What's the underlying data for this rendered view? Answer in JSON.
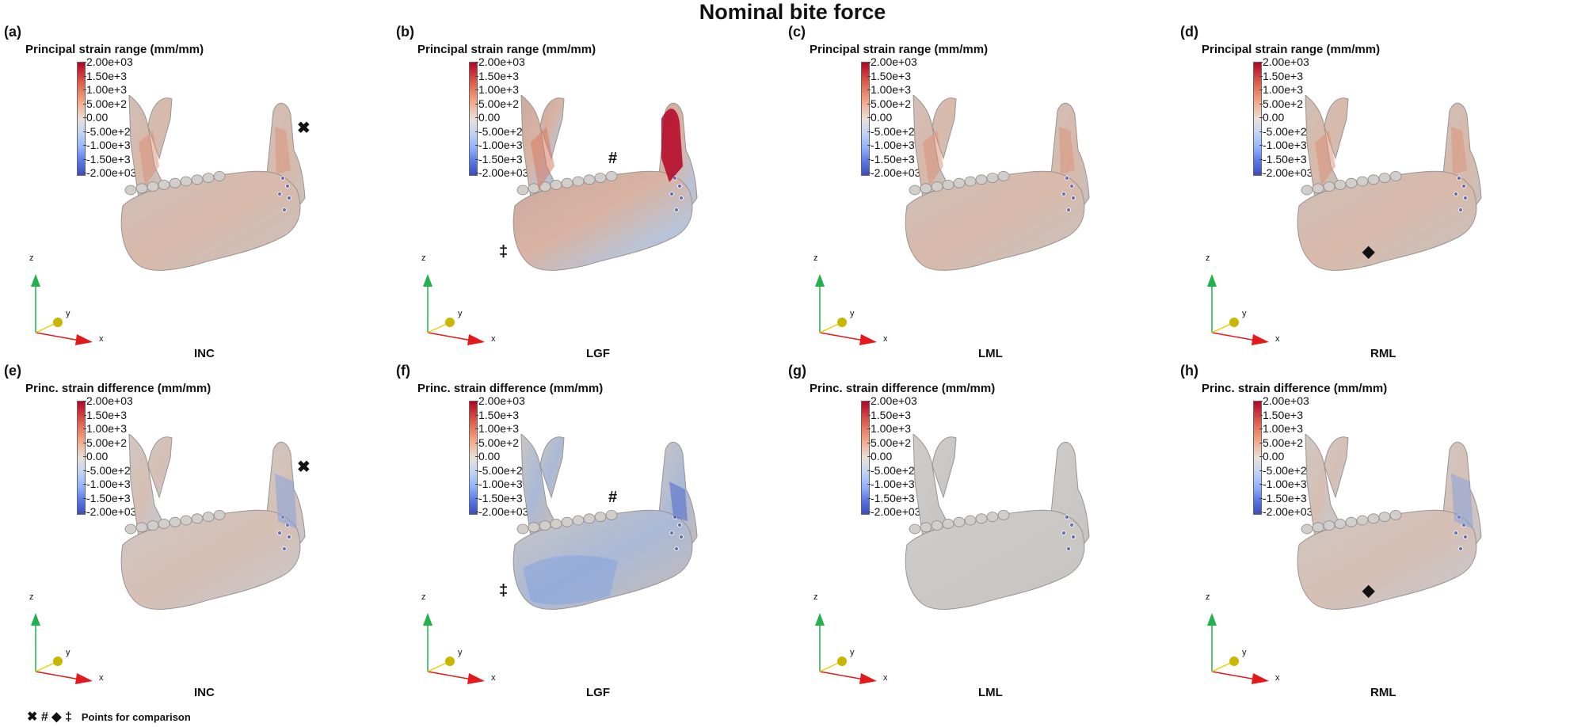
{
  "title": "Nominal bite force",
  "colorbar_ticks": [
    "2.00e+03",
    "1.50e+3",
    "1.00e+3",
    "5.00e+2",
    "0.00",
    "-5.00e+2",
    "-1.00e+3",
    "-1.50e+3",
    "-2.00e+03"
  ],
  "colorbar_ticks_d": [
    "2.00e+03",
    "1.50e+3",
    "1.00e+3",
    "5.00e+2",
    "0.00",
    "-5.00e+2",
    "-1.00e+3",
    "-1.50e+3",
    "-2.00e+03"
  ],
  "colorbar_ticks_f": [
    "2.00e+03",
    "1.50e+3",
    "1.00e+3",
    "5.00e+2",
    "0.00",
    "-5.00e+2",
    "-1.00e+3",
    "-1.50e+3",
    "-2.00e+03"
  ],
  "axis_labels": {
    "z": "z",
    "y": "y",
    "x": "x"
  },
  "colors": {
    "high": "#b40426",
    "mid": "#dddcdc",
    "low": "#3b4cc0",
    "axis_z": "#22b14c",
    "axis_x": "#e31a1c",
    "axis_y": "#e8d000"
  },
  "panels": [
    {
      "letter": "(a)",
      "bar_title": "Principal strain range (mm/mm)",
      "case": "INC",
      "marker": "✖",
      "marker_pos": "right",
      "theme": "range"
    },
    {
      "letter": "(b)",
      "bar_title": "Principal strain range (mm/mm)",
      "case": "LGF",
      "marker": "#",
      "marker2": "‡",
      "marker_pos": "right-bottom",
      "theme": "range-high"
    },
    {
      "letter": "(c)",
      "bar_title": "Principal strain range (mm/mm)",
      "case": "LML",
      "marker": "",
      "marker_pos": "",
      "theme": "range"
    },
    {
      "letter": "(d)",
      "bar_title": "Principal strain range (mm/mm)",
      "case": "RML",
      "marker": "◆",
      "marker_pos": "bottom",
      "theme": "range"
    },
    {
      "letter": "(e)",
      "bar_title": "Princ. strain difference (mm/mm)",
      "case": "INC",
      "marker": "✖",
      "marker_pos": "right",
      "theme": "diff"
    },
    {
      "letter": "(f)",
      "bar_title": "Princ. strain difference (mm/mm)",
      "case": "LGF",
      "marker": "#",
      "marker2": "‡",
      "marker_pos": "right-bottom",
      "theme": "diff-blue"
    },
    {
      "letter": "(g)",
      "bar_title": "Princ. strain difference (mm/mm)",
      "case": "LML",
      "marker": "",
      "marker_pos": "",
      "theme": "grey"
    },
    {
      "letter": "(h)",
      "bar_title": "Princ. strain difference (mm/mm)",
      "case": "RML",
      "marker": "◆",
      "marker_pos": "bottom",
      "theme": "diff"
    }
  ],
  "footer": {
    "symbols": "✖ # ◆ ‡",
    "text": "Points for comparison"
  }
}
